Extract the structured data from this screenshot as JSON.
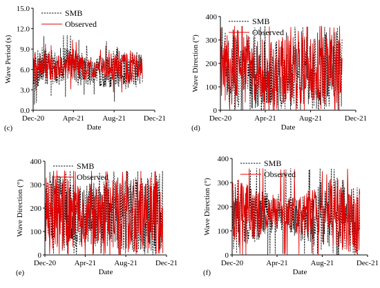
{
  "colors": {
    "smb": "#000000",
    "observed": "#e00000"
  },
  "chart_data": [
    {
      "panel": "(c)",
      "type": "line",
      "ylabel": "Wave Period (s)",
      "xlabel": "Date",
      "ylim": [
        0,
        15
      ],
      "yticks": [
        0,
        3,
        6,
        9,
        12,
        15
      ],
      "ytick_labels": [
        "0.0",
        "3.0",
        "6.0",
        "9.0",
        "12.0",
        "15.0"
      ],
      "xlim": [
        "2020-12-01",
        "2021-12-01"
      ],
      "xtick_dates": [
        "2020-12-01",
        "2021-04-01",
        "2021-08-01",
        "2021-12-01"
      ],
      "xtick_labels": [
        "Dec-20",
        "Apr-21",
        "Aug-21",
        "Dec-21"
      ],
      "data_range": [
        "2020-12-01",
        "2021-10-25"
      ],
      "series": [
        {
          "name": "SMB",
          "style": "dashed",
          "color": "#000000",
          "x": [
            "2020-12-01",
            "2021-01-01",
            "2021-02-01",
            "2021-03-01",
            "2021-04-01",
            "2021-05-01",
            "2021-06-01",
            "2021-07-01",
            "2021-08-01",
            "2021-09-01",
            "2021-10-01",
            "2021-10-25"
          ],
          "y": [
            6.0,
            6.4,
            6.3,
            6.5,
            6.4,
            6.0,
            5.7,
            5.8,
            6.4,
            5.9,
            6.2,
            6.0
          ],
          "spread": [
            3.3,
            2.8,
            2.6,
            2.8,
            2.9,
            2.3,
            2.1,
            2.4,
            3.2,
            2.8,
            3.3,
            2.2
          ]
        },
        {
          "name": "Observed",
          "style": "solid",
          "color": "#e00000",
          "x": [
            "2020-12-01",
            "2021-01-01",
            "2021-02-01",
            "2021-03-01",
            "2021-04-01",
            "2021-05-01",
            "2021-06-01",
            "2021-07-01",
            "2021-08-01",
            "2021-09-01",
            "2021-10-01",
            "2021-10-25"
          ],
          "y": [
            6.3,
            6.6,
            6.4,
            6.6,
            6.7,
            6.2,
            6.1,
            6.2,
            6.8,
            6.2,
            6.4,
            6.3
          ],
          "spread": [
            2.2,
            2.0,
            1.9,
            2.0,
            2.3,
            1.7,
            1.5,
            1.8,
            2.6,
            2.2,
            2.6,
            1.7
          ]
        }
      ]
    },
    {
      "panel": "(d)",
      "type": "line",
      "ylabel": "Wave Direction (°)",
      "xlabel": "Date",
      "ylim": [
        0,
        400
      ],
      "yticks": [
        0,
        100,
        200,
        300,
        400
      ],
      "ytick_labels": [
        "0",
        "100",
        "200",
        "300",
        "400"
      ],
      "xlim": [
        "2020-12-01",
        "2021-12-01"
      ],
      "xtick_dates": [
        "2020-12-01",
        "2021-04-01",
        "2021-08-01",
        "2021-12-01"
      ],
      "xtick_labels": [
        "Dec-20",
        "Apr-21",
        "Aug-21",
        "Dec-21"
      ],
      "data_range": [
        "2020-12-01",
        "2021-10-25"
      ],
      "series": [
        {
          "name": "SMB",
          "style": "dashed",
          "color": "#000000",
          "x": [
            "2020-12-01",
            "2021-01-01",
            "2021-02-01",
            "2021-03-01",
            "2021-04-01",
            "2021-05-01",
            "2021-06-01",
            "2021-07-01",
            "2021-08-01",
            "2021-09-01",
            "2021-10-01",
            "2021-10-25"
          ],
          "y": [
            190,
            185,
            175,
            160,
            150,
            160,
            175,
            180,
            170,
            160,
            170,
            180
          ],
          "spread": [
            170,
            170,
            165,
            160,
            150,
            150,
            160,
            165,
            170,
            170,
            170,
            170
          ]
        },
        {
          "name": "Observed",
          "style": "solid",
          "color": "#e00000",
          "x": [
            "2020-12-01",
            "2021-01-01",
            "2021-02-01",
            "2021-03-01",
            "2021-04-01",
            "2021-05-01",
            "2021-06-01",
            "2021-07-01",
            "2021-08-01",
            "2021-09-01",
            "2021-10-01",
            "2021-10-25"
          ],
          "y": [
            200,
            195,
            180,
            165,
            160,
            165,
            175,
            185,
            175,
            165,
            175,
            185
          ],
          "spread": [
            160,
            160,
            155,
            150,
            140,
            140,
            150,
            155,
            160,
            160,
            160,
            160
          ]
        }
      ]
    },
    {
      "panel": "(e)",
      "type": "line",
      "ylabel": "Wave Direction (°)",
      "xlabel": "Date",
      "ylim": [
        0,
        400
      ],
      "yticks": [
        0,
        100,
        200,
        300,
        400
      ],
      "ytick_labels": [
        "0",
        "100",
        "200",
        "300",
        "400"
      ],
      "xlim": [
        "2020-12-01",
        "2021-12-01"
      ],
      "xtick_dates": [
        "2020-12-01",
        "2021-04-01",
        "2021-08-01",
        "2021-12-01"
      ],
      "xtick_labels": [
        "Dec-20",
        "Apr-21",
        "Aug-21",
        "Dec-21"
      ],
      "data_range": [
        "2020-12-01",
        "2021-11-20"
      ],
      "series": [
        {
          "name": "SMB",
          "style": "dashed",
          "color": "#000000",
          "x": [
            "2020-12-01",
            "2021-01-01",
            "2021-02-01",
            "2021-03-01",
            "2021-04-01",
            "2021-05-01",
            "2021-06-01",
            "2021-07-01",
            "2021-08-01",
            "2021-09-01",
            "2021-10-01",
            "2021-11-01",
            "2021-11-20"
          ],
          "y": [
            190,
            185,
            175,
            170,
            165,
            175,
            180,
            185,
            175,
            170,
            175,
            180,
            185
          ],
          "spread": [
            165,
            165,
            160,
            150,
            140,
            140,
            150,
            160,
            165,
            165,
            165,
            165,
            165
          ]
        },
        {
          "name": "Observed",
          "style": "solid",
          "color": "#e00000",
          "x": [
            "2020-12-01",
            "2021-01-01",
            "2021-02-01",
            "2021-03-01",
            "2021-04-01",
            "2021-05-01",
            "2021-06-01",
            "2021-07-01",
            "2021-08-01",
            "2021-09-01",
            "2021-10-01",
            "2021-11-01",
            "2021-11-20"
          ],
          "y": [
            185,
            180,
            175,
            170,
            165,
            170,
            175,
            180,
            170,
            165,
            170,
            175,
            180
          ],
          "spread": [
            160,
            160,
            150,
            140,
            130,
            130,
            140,
            150,
            160,
            160,
            160,
            160,
            160
          ]
        }
      ]
    },
    {
      "panel": "(f)",
      "type": "line",
      "ylabel": "Wave Direction (°)",
      "xlabel": "Date",
      "ylim": [
        0,
        400
      ],
      "yticks": [
        0,
        100,
        200,
        300,
        400
      ],
      "ytick_labels": [
        "0",
        "100",
        "200",
        "300",
        "400"
      ],
      "xlim": [
        "2020-12-01",
        "2021-12-01"
      ],
      "xtick_dates": [
        "2020-12-01",
        "2021-04-01",
        "2021-08-01",
        "2021-12-01"
      ],
      "xtick_labels": [
        "Dec-20",
        "Apr-21",
        "Aug-21",
        "Dec-21"
      ],
      "data_range": [
        "2020-12-01",
        "2021-11-10"
      ],
      "series": [
        {
          "name": "SMB",
          "style": "dashed",
          "color": "#000000",
          "x": [
            "2020-12-01",
            "2021-01-01",
            "2021-02-01",
            "2021-03-01",
            "2021-04-01",
            "2021-05-01",
            "2021-06-01",
            "2021-07-01",
            "2021-08-01",
            "2021-09-01",
            "2021-10-01",
            "2021-11-01",
            "2021-11-10"
          ],
          "y": [
            170,
            165,
            160,
            170,
            175,
            165,
            150,
            160,
            170,
            165,
            150,
            140,
            150
          ],
          "spread": [
            150,
            140,
            110,
            90,
            80,
            80,
            90,
            120,
            160,
            170,
            160,
            150,
            150
          ]
        },
        {
          "name": "Observed",
          "style": "solid",
          "color": "#e00000",
          "x": [
            "2020-12-01",
            "2021-01-01",
            "2021-02-01",
            "2021-03-01",
            "2021-04-01",
            "2021-05-01",
            "2021-06-01",
            "2021-07-01",
            "2021-08-01",
            "2021-09-01",
            "2021-10-01",
            "2021-11-01",
            "2021-11-10"
          ],
          "y": [
            180,
            175,
            170,
            175,
            180,
            170,
            160,
            175,
            200,
            185,
            160,
            150,
            160
          ],
          "spread": [
            140,
            130,
            100,
            80,
            70,
            70,
            80,
            110,
            150,
            160,
            150,
            140,
            140
          ]
        }
      ]
    }
  ]
}
